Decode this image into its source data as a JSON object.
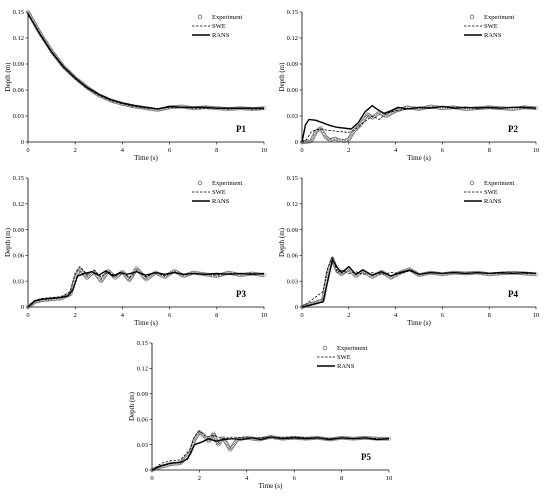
{
  "figure": {
    "panels": [
      {
        "id": "P1",
        "label": "P1",
        "ylabel": "Depth (m)",
        "xlabel": "Time (s)"
      },
      {
        "id": "P2",
        "label": "P2",
        "ylabel": "Depth (m)",
        "xlabel": "Time (s)"
      },
      {
        "id": "P3",
        "label": "P3",
        "ylabel": "Depth (m)",
        "xlabel": "Time (s)"
      },
      {
        "id": "P4",
        "label": "P4",
        "ylabel": "Depth (m)",
        "xlabel": "Time (s)"
      },
      {
        "id": "P5",
        "label": "P5",
        "ylabel": "Depth (m)",
        "xlabel": "Time (s)"
      }
    ],
    "legend": [
      "Experiment",
      "SWE",
      "RANS"
    ]
  },
  "chart_data": [
    {
      "type": "line",
      "title": "P1",
      "xlabel": "Time (s)",
      "ylabel": "Depth (m)",
      "xlim": [
        0,
        10
      ],
      "ylim": [
        0,
        0.15
      ],
      "xticks": [
        0,
        2,
        4,
        6,
        8,
        10
      ],
      "yticks": [
        0,
        0.03,
        0.06,
        0.09,
        0.12,
        0.15
      ],
      "ytick_labels": [
        "0",
        "0.03",
        "0.06",
        "0.09",
        "0.12",
        "0.15"
      ],
      "legend_position": "top-right",
      "grid": false,
      "series": [
        {
          "name": "Experiment",
          "style": "circles",
          "x": [
            0,
            0.5,
            1,
            1.5,
            2,
            2.5,
            3,
            3.5,
            4,
            4.5,
            5,
            5.5,
            6,
            6.5,
            7,
            7.5,
            8,
            8.5,
            9,
            9.5,
            10
          ],
          "y": [
            0.15,
            0.126,
            0.105,
            0.087,
            0.074,
            0.063,
            0.054,
            0.048,
            0.044,
            0.041,
            0.039,
            0.037,
            0.04,
            0.041,
            0.039,
            0.04,
            0.039,
            0.038,
            0.039,
            0.038,
            0.039
          ]
        },
        {
          "name": "SWE",
          "style": "dashed",
          "x": [
            0,
            0.5,
            1,
            1.5,
            2,
            2.5,
            3,
            3.5,
            4,
            4.5,
            5,
            5.5,
            6,
            6.5,
            7,
            7.5,
            8,
            8.5,
            9,
            9.5,
            10
          ],
          "y": [
            0.148,
            0.124,
            0.103,
            0.086,
            0.073,
            0.062,
            0.054,
            0.048,
            0.044,
            0.041,
            0.039,
            0.038,
            0.04,
            0.04,
            0.039,
            0.039,
            0.039,
            0.038,
            0.039,
            0.038,
            0.038
          ]
        },
        {
          "name": "RANS",
          "style": "solid",
          "x": [
            0,
            0.5,
            1,
            1.5,
            2,
            2.5,
            3,
            3.5,
            4,
            4.5,
            5,
            5.5,
            6,
            6.5,
            7,
            7.5,
            8,
            8.5,
            9,
            9.5,
            10
          ],
          "y": [
            0.148,
            0.125,
            0.104,
            0.087,
            0.074,
            0.063,
            0.055,
            0.049,
            0.045,
            0.042,
            0.04,
            0.038,
            0.041,
            0.04,
            0.04,
            0.04,
            0.039,
            0.039,
            0.039,
            0.039,
            0.039
          ]
        }
      ]
    },
    {
      "type": "line",
      "title": "P2",
      "xlabel": "Time (s)",
      "ylabel": "Depth (m)",
      "xlim": [
        0,
        10
      ],
      "ylim": [
        0,
        0.15
      ],
      "xticks": [
        0,
        2,
        4,
        6,
        8,
        10
      ],
      "yticks": [
        0,
        0.03,
        0.06,
        0.09,
        0.12,
        0.15
      ],
      "ytick_labels": [
        "0",
        "0.03",
        "0.06",
        "0.09",
        "0.12",
        "0.15"
      ],
      "legend_position": "top-right",
      "grid": false,
      "series": [
        {
          "name": "Experiment",
          "style": "circles",
          "x": [
            0,
            0.2,
            0.4,
            0.6,
            0.8,
            1.0,
            1.2,
            1.4,
            1.6,
            1.8,
            2.0,
            2.2,
            2.5,
            2.8,
            3.0,
            3.3,
            3.6,
            4.0,
            4.5,
            5,
            5.5,
            6,
            6.5,
            7,
            7.5,
            8,
            8.5,
            9,
            9.5,
            10
          ],
          "y": [
            0,
            0,
            0.001,
            0.012,
            0.016,
            0.006,
            0.002,
            0.004,
            0.002,
            0.001,
            0.003,
            0.012,
            0.02,
            0.032,
            0.028,
            0.034,
            0.03,
            0.036,
            0.04,
            0.038,
            0.041,
            0.039,
            0.04,
            0.038,
            0.039,
            0.04,
            0.039,
            0.038,
            0.04,
            0.039
          ]
        },
        {
          "name": "SWE",
          "style": "dashed",
          "x": [
            0,
            0.2,
            0.4,
            0.6,
            0.8,
            1.0,
            1.3,
            1.6,
            2.0,
            2.3,
            2.6,
            3.0,
            3.3,
            3.6,
            4.0,
            4.5,
            5,
            5.5,
            6,
            6.5,
            7,
            7.5,
            8,
            8.5,
            9,
            9.5,
            10
          ],
          "y": [
            0,
            0.003,
            0.012,
            0.014,
            0.015,
            0.014,
            0.013,
            0.012,
            0.011,
            0.015,
            0.022,
            0.03,
            0.026,
            0.033,
            0.036,
            0.038,
            0.039,
            0.04,
            0.041,
            0.04,
            0.039,
            0.04,
            0.039,
            0.039,
            0.04,
            0.039,
            0.039
          ]
        },
        {
          "name": "RANS",
          "style": "solid",
          "x": [
            0,
            0.15,
            0.3,
            0.6,
            0.9,
            1.2,
            1.5,
            1.8,
            2.1,
            2.4,
            2.7,
            3.0,
            3.2,
            3.5,
            3.8,
            4.1,
            4.5,
            5,
            5.5,
            6,
            6.5,
            7,
            7.5,
            8,
            8.5,
            9,
            9.5,
            10
          ],
          "y": [
            0,
            0.02,
            0.026,
            0.025,
            0.022,
            0.019,
            0.017,
            0.016,
            0.015,
            0.022,
            0.035,
            0.042,
            0.038,
            0.033,
            0.036,
            0.04,
            0.038,
            0.04,
            0.039,
            0.041,
            0.039,
            0.04,
            0.039,
            0.04,
            0.039,
            0.04,
            0.04,
            0.039
          ]
        }
      ]
    },
    {
      "type": "line",
      "title": "P3",
      "xlabel": "Time (s)",
      "ylabel": "Depth (m)",
      "xlim": [
        0,
        10
      ],
      "ylim": [
        0,
        0.15
      ],
      "xticks": [
        0,
        2,
        4,
        6,
        8,
        10
      ],
      "yticks": [
        0,
        0.03,
        0.06,
        0.09,
        0.12,
        0.15
      ],
      "ytick_labels": [
        "0",
        "0.03",
        "0.06",
        "0.09",
        "0.12",
        "0.15"
      ],
      "legend_position": "top-right",
      "grid": false,
      "series": [
        {
          "name": "Experiment",
          "style": "circles",
          "x": [
            0,
            0.3,
            0.6,
            1.0,
            1.4,
            1.8,
            2.0,
            2.2,
            2.5,
            2.8,
            3.1,
            3.4,
            3.7,
            4.0,
            4.3,
            4.6,
            5.0,
            5.4,
            5.8,
            6.2,
            6.6,
            7.0,
            7.5,
            8.0,
            8.5,
            9.0,
            9.5,
            10
          ],
          "y": [
            0,
            0.006,
            0.008,
            0.009,
            0.01,
            0.015,
            0.033,
            0.044,
            0.034,
            0.041,
            0.03,
            0.042,
            0.034,
            0.041,
            0.031,
            0.045,
            0.032,
            0.04,
            0.035,
            0.042,
            0.036,
            0.04,
            0.038,
            0.036,
            0.04,
            0.037,
            0.039,
            0.037
          ]
        },
        {
          "name": "SWE",
          "style": "dashed",
          "x": [
            0,
            0.3,
            0.6,
            1.0,
            1.4,
            1.8,
            2.0,
            2.2,
            2.5,
            2.8,
            3.1,
            3.4,
            3.7,
            4.0,
            4.3,
            4.6,
            5.0,
            5.4,
            5.8,
            6.2,
            6.6,
            7.0,
            7.5,
            8.0,
            8.5,
            9.0,
            9.5,
            10
          ],
          "y": [
            0,
            0.008,
            0.01,
            0.011,
            0.012,
            0.018,
            0.04,
            0.047,
            0.038,
            0.043,
            0.035,
            0.041,
            0.036,
            0.04,
            0.034,
            0.042,
            0.035,
            0.04,
            0.036,
            0.041,
            0.037,
            0.039,
            0.038,
            0.037,
            0.039,
            0.038,
            0.039,
            0.038
          ]
        },
        {
          "name": "RANS",
          "style": "solid",
          "x": [
            0,
            0.3,
            0.6,
            1.0,
            1.4,
            1.7,
            1.9,
            2.1,
            2.4,
            2.7,
            3.0,
            3.3,
            3.6,
            3.9,
            4.2,
            4.6,
            5.0,
            5.4,
            5.8,
            6.2,
            6.6,
            7.0,
            7.5,
            8.0,
            8.5,
            9.0,
            9.5,
            10
          ],
          "y": [
            0,
            0.007,
            0.009,
            0.01,
            0.011,
            0.013,
            0.02,
            0.036,
            0.039,
            0.041,
            0.037,
            0.042,
            0.036,
            0.04,
            0.038,
            0.041,
            0.037,
            0.04,
            0.038,
            0.04,
            0.038,
            0.039,
            0.038,
            0.039,
            0.038,
            0.039,
            0.038,
            0.039
          ]
        }
      ]
    },
    {
      "type": "line",
      "title": "P4",
      "xlabel": "Time (s)",
      "ylabel": "Depth (m)",
      "xlim": [
        0,
        10
      ],
      "ylim": [
        0,
        0.15
      ],
      "xticks": [
        0,
        2,
        4,
        6,
        8,
        10
      ],
      "yticks": [
        0,
        0.03,
        0.06,
        0.09,
        0.12,
        0.15
      ],
      "ytick_labels": [
        "0",
        "0.03",
        "0.06",
        "0.09",
        "0.12",
        "0.15"
      ],
      "legend_position": "top-right",
      "grid": false,
      "series": [
        {
          "name": "Experiment",
          "style": "circles",
          "x": [
            0,
            0.3,
            0.6,
            0.9,
            1.1,
            1.3,
            1.5,
            1.7,
            2.0,
            2.3,
            2.6,
            3.0,
            3.4,
            3.8,
            4.2,
            4.6,
            5.0,
            5.5,
            6.0,
            6.5,
            7.0,
            7.5,
            8.0,
            8.5,
            9.0,
            9.5,
            10
          ],
          "y": [
            0,
            0.003,
            0.005,
            0.008,
            0.04,
            0.056,
            0.042,
            0.038,
            0.044,
            0.036,
            0.042,
            0.035,
            0.041,
            0.034,
            0.04,
            0.044,
            0.037,
            0.04,
            0.038,
            0.04,
            0.039,
            0.04,
            0.038,
            0.039,
            0.04,
            0.039,
            0.038
          ]
        },
        {
          "name": "SWE",
          "style": "dashed",
          "x": [
            0,
            0.3,
            0.6,
            0.9,
            1.1,
            1.3,
            1.5,
            1.7,
            2.0,
            2.3,
            2.6,
            3.0,
            3.4,
            3.8,
            4.2,
            4.6,
            5.0,
            5.5,
            6.0,
            6.5,
            7.0,
            7.5,
            8.0,
            8.5,
            9.0,
            9.5,
            10
          ],
          "y": [
            0,
            0.006,
            0.012,
            0.018,
            0.045,
            0.059,
            0.04,
            0.043,
            0.039,
            0.041,
            0.038,
            0.04,
            0.038,
            0.04,
            0.039,
            0.042,
            0.038,
            0.04,
            0.039,
            0.04,
            0.039,
            0.04,
            0.039,
            0.039,
            0.04,
            0.039,
            0.039
          ]
        },
        {
          "name": "RANS",
          "style": "solid",
          "x": [
            0,
            0.3,
            0.6,
            0.9,
            1.1,
            1.3,
            1.5,
            1.7,
            2.0,
            2.3,
            2.6,
            3.0,
            3.4,
            3.8,
            4.2,
            4.6,
            5.0,
            5.5,
            6.0,
            6.5,
            7.0,
            7.5,
            8.0,
            8.5,
            9.0,
            9.5,
            10
          ],
          "y": [
            0,
            0.002,
            0.004,
            0.006,
            0.03,
            0.055,
            0.046,
            0.04,
            0.047,
            0.038,
            0.043,
            0.037,
            0.041,
            0.036,
            0.04,
            0.043,
            0.038,
            0.04,
            0.039,
            0.04,
            0.039,
            0.04,
            0.039,
            0.04,
            0.039,
            0.04,
            0.039
          ]
        }
      ]
    },
    {
      "type": "line",
      "title": "P5",
      "xlabel": "Time (s)",
      "ylabel": "Depth (m)",
      "xlim": [
        0,
        10
      ],
      "ylim": [
        0,
        0.15
      ],
      "xticks": [
        0,
        2,
        4,
        6,
        8,
        10
      ],
      "yticks": [
        0,
        0.03,
        0.06,
        0.09,
        0.12,
        0.15
      ],
      "ytick_labels": [
        "0",
        "0.03",
        "0.06",
        "0.09",
        "0.12",
        "0.15"
      ],
      "legend_position": "top-right",
      "grid": false,
      "series": [
        {
          "name": "Experiment",
          "style": "circles",
          "x": [
            0,
            0.4,
            0.8,
            1.2,
            1.6,
            1.8,
            2.0,
            2.2,
            2.4,
            2.6,
            2.8,
            3.0,
            3.3,
            3.6,
            4.0,
            4.5,
            5.0,
            5.5,
            6.0,
            6.5,
            7.0,
            7.5,
            8.0,
            8.5,
            9.0,
            9.5,
            10
          ],
          "y": [
            0,
            0.004,
            0.007,
            0.008,
            0.02,
            0.036,
            0.045,
            0.04,
            0.034,
            0.043,
            0.03,
            0.038,
            0.024,
            0.036,
            0.038,
            0.036,
            0.039,
            0.037,
            0.038,
            0.037,
            0.038,
            0.036,
            0.038,
            0.037,
            0.038,
            0.037,
            0.037
          ]
        },
        {
          "name": "SWE",
          "style": "dashed",
          "x": [
            0,
            0.4,
            0.8,
            1.2,
            1.6,
            1.8,
            2.0,
            2.3,
            2.6,
            3.0,
            3.4,
            3.8,
            4.2,
            4.6,
            5.0,
            5.5,
            6.0,
            6.5,
            7.0,
            7.5,
            8.0,
            8.5,
            9.0,
            9.5,
            10
          ],
          "y": [
            0,
            0.008,
            0.011,
            0.012,
            0.024,
            0.04,
            0.046,
            0.039,
            0.041,
            0.037,
            0.039,
            0.038,
            0.038,
            0.038,
            0.039,
            0.038,
            0.039,
            0.038,
            0.038,
            0.037,
            0.038,
            0.037,
            0.038,
            0.037,
            0.037
          ]
        },
        {
          "name": "RANS",
          "style": "solid",
          "x": [
            0,
            0.4,
            0.8,
            1.2,
            1.5,
            1.8,
            2.1,
            2.4,
            2.7,
            3.0,
            3.4,
            3.8,
            4.2,
            4.6,
            5.0,
            5.5,
            6.0,
            6.5,
            7.0,
            7.5,
            8.0,
            8.5,
            9.0,
            9.5,
            10
          ],
          "y": [
            0,
            0.005,
            0.008,
            0.009,
            0.013,
            0.03,
            0.033,
            0.037,
            0.034,
            0.036,
            0.037,
            0.036,
            0.038,
            0.036,
            0.039,
            0.037,
            0.038,
            0.037,
            0.038,
            0.036,
            0.038,
            0.037,
            0.038,
            0.036,
            0.037
          ]
        }
      ]
    }
  ]
}
